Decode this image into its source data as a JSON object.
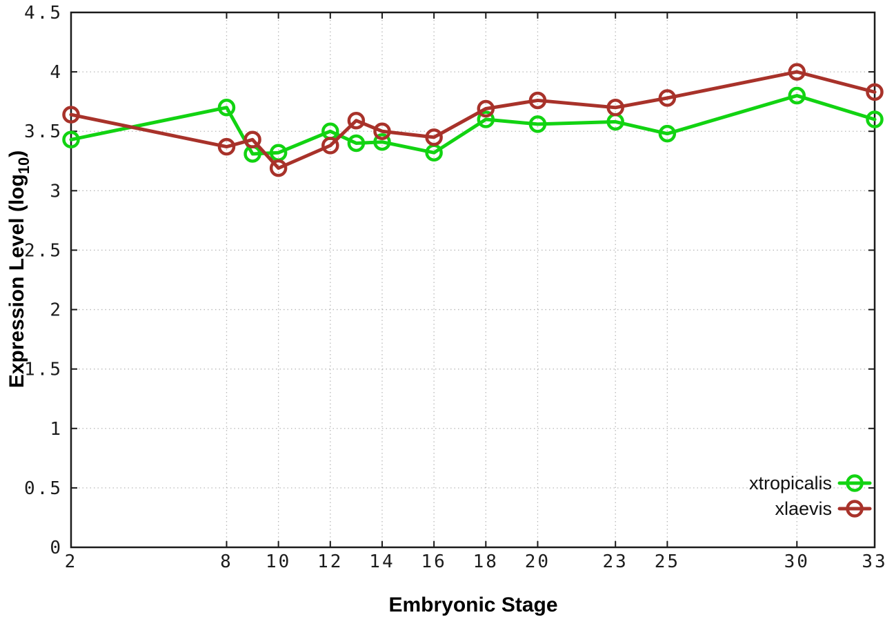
{
  "chart_data": {
    "type": "line",
    "title": "",
    "xlabel": "Embryonic Stage",
    "ylabel": "Expression Level (log10)",
    "ylabel_parts": {
      "prefix": "Expression Level (log",
      "sub": "10",
      "suffix": ")"
    },
    "xlim": [
      2,
      33
    ],
    "ylim": [
      0,
      4.5
    ],
    "x_ticks": [
      2,
      8,
      10,
      12,
      14,
      16,
      18,
      20,
      23,
      25,
      30,
      33
    ],
    "x_tick_labels": [
      "2",
      "8",
      "10",
      "12",
      "14",
      "16",
      "18",
      "20",
      "23",
      "25",
      "30",
      "33"
    ],
    "y_ticks": [
      0,
      0.5,
      1,
      1.5,
      2,
      2.5,
      3,
      3.5,
      4,
      4.5
    ],
    "y_tick_labels": [
      "0",
      "0.5",
      "1",
      "1.5",
      "2",
      "2.5",
      "3",
      "3.5",
      "4",
      "4.5"
    ],
    "grid": true,
    "grid_style": "dotted",
    "legend_position": "inside-bottom-right",
    "marker": "open-circle",
    "x": [
      2,
      8,
      9,
      10,
      12,
      13,
      14,
      16,
      18,
      20,
      23,
      25,
      30,
      33
    ],
    "series": [
      {
        "name": "xtropicalis",
        "color": "#12d312",
        "values": [
          3.43,
          3.7,
          3.31,
          3.32,
          3.5,
          3.4,
          3.41,
          3.32,
          3.6,
          3.56,
          3.58,
          3.48,
          3.8,
          3.6
        ]
      },
      {
        "name": "xlaevis",
        "color": "#a8322a",
        "values": [
          3.64,
          3.37,
          3.43,
          3.19,
          3.38,
          3.59,
          3.5,
          3.45,
          3.69,
          3.76,
          3.7,
          3.78,
          4.0,
          3.83
        ]
      }
    ],
    "colors": {
      "axis": "#1a1a1a",
      "grid": "#b8b8b8",
      "background": "#ffffff"
    }
  }
}
